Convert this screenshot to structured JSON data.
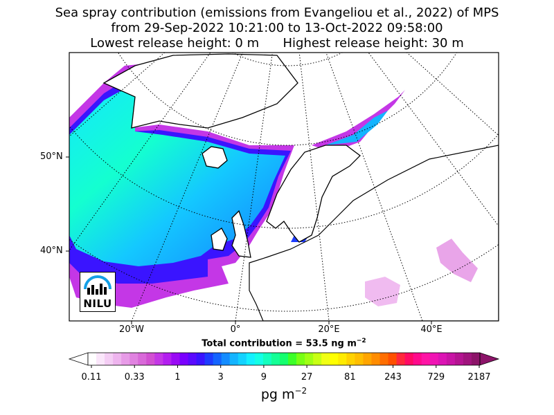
{
  "title": {
    "line1": "Sea spray contribution (emissions from Evangeliou et al., 2022) of MPS",
    "line2": "from 29-Sep-2022 10:21:00 to 13-Oct-2022 09:58:00",
    "line3_left": "Lowest release height: 0 m",
    "line3_right": "Highest release height: 30 m"
  },
  "map": {
    "lat_labels": [
      "50°N",
      "40°N"
    ],
    "lon_labels": [
      "20°W",
      "0°",
      "20°E",
      "40°E"
    ]
  },
  "total_contribution": {
    "text": "Total contribution = 53.5 ng m",
    "exponent": "−2"
  },
  "colorbar": {
    "ticks": [
      "0.11",
      "0.33",
      "1",
      "3",
      "9",
      "27",
      "81",
      "243",
      "729",
      "2187"
    ],
    "unit": "pg m",
    "unit_exponent": "−2",
    "colors": [
      "#ffffff",
      "#fae6fa",
      "#f4cdf4",
      "#eeb4ee",
      "#e79be7",
      "#e082e0",
      "#d969d9",
      "#d250d2",
      "#c437e6",
      "#b31ef0",
      "#9a0af5",
      "#7a00ff",
      "#5a0aff",
      "#3a14ff",
      "#1e3cff",
      "#1464ff",
      "#148cff",
      "#14b4ff",
      "#14d2ff",
      "#14f0ff",
      "#14ffe6",
      "#14ffbe",
      "#14ff96",
      "#14ff6e",
      "#3cff28",
      "#78ff14",
      "#a0ff14",
      "#c8ff14",
      "#f0ff14",
      "#ffff00",
      "#ffeb00",
      "#ffd200",
      "#ffbe00",
      "#ffa500",
      "#ff8c00",
      "#ff6e00",
      "#ff5000",
      "#ff283c",
      "#ff0a64",
      "#ff0a8c",
      "#ff14a5",
      "#f014b4",
      "#dc14b4",
      "#c814a5",
      "#b41491",
      "#a0147d",
      "#8c1469"
    ]
  },
  "logo": {
    "text": "NILU"
  }
}
